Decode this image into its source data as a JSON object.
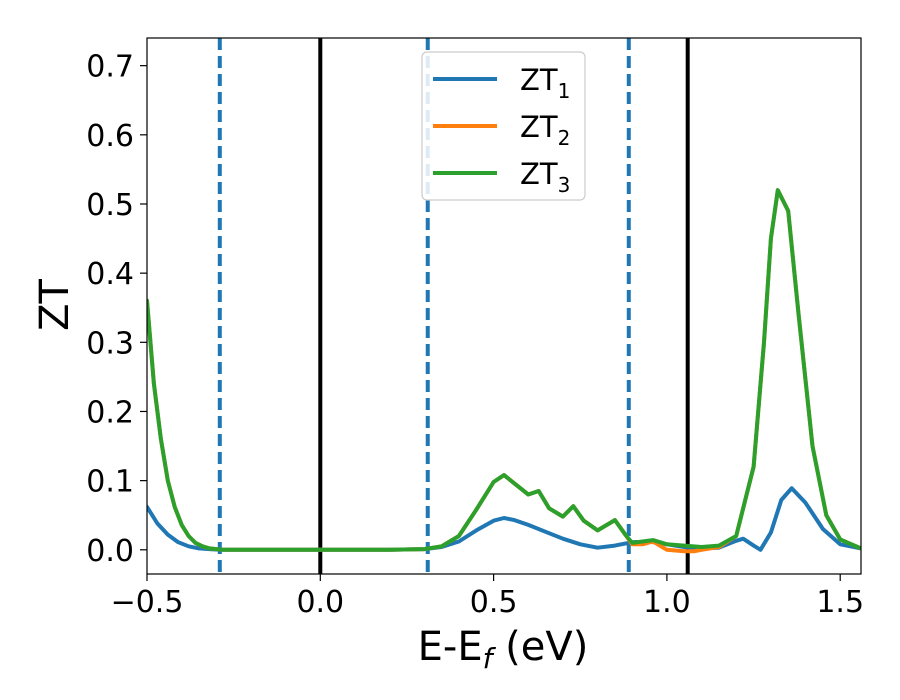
{
  "chart_data": {
    "type": "line",
    "xlabel_main": "E-E",
    "xlabel_sub": "f",
    "xlabel_unit": " (eV)",
    "ylabel": "ZT",
    "xlim": [
      -0.5,
      1.56
    ],
    "ylim": [
      -0.035,
      0.74
    ],
    "x_ticks": [
      -0.5,
      0.0,
      0.5,
      1.0,
      1.5
    ],
    "x_tick_labels": [
      "−0.5",
      "0.0",
      "0.5",
      "1.0",
      "1.5"
    ],
    "y_ticks": [
      0.0,
      0.1,
      0.2,
      0.3,
      0.4,
      0.5,
      0.6,
      0.7
    ],
    "y_tick_labels": [
      "0.0",
      "0.1",
      "0.2",
      "0.3",
      "0.4",
      "0.5",
      "0.6",
      "0.7"
    ],
    "grid": false,
    "legend_position": "top-center",
    "series": [
      {
        "name_main": "ZT",
        "name_sub": "1",
        "color": "#1f77b4",
        "x": [
          -0.5,
          -0.47,
          -0.44,
          -0.41,
          -0.38,
          -0.35,
          -0.32,
          -0.29,
          -0.2,
          0.0,
          0.2,
          0.3,
          0.35,
          0.4,
          0.45,
          0.5,
          0.53,
          0.56,
          0.6,
          0.65,
          0.7,
          0.75,
          0.8,
          0.85,
          0.9,
          0.95,
          1.0,
          1.05,
          1.1,
          1.15,
          1.2,
          1.22,
          1.25,
          1.27,
          1.3,
          1.33,
          1.36,
          1.4,
          1.45,
          1.5,
          1.56
        ],
        "y": [
          0.062,
          0.038,
          0.022,
          0.011,
          0.005,
          0.002,
          0.001,
          0.0,
          0.0,
          0.0,
          0.0,
          0.001,
          0.004,
          0.012,
          0.028,
          0.042,
          0.046,
          0.043,
          0.036,
          0.026,
          0.016,
          0.008,
          0.003,
          0.006,
          0.011,
          0.012,
          0.008,
          0.004,
          0.002,
          0.003,
          0.013,
          0.016,
          0.006,
          0.0,
          0.025,
          0.072,
          0.089,
          0.068,
          0.03,
          0.008,
          0.002
        ]
      },
      {
        "name_main": "ZT",
        "name_sub": "2",
        "color": "#ff7f0e",
        "x": [
          -0.5,
          -0.48,
          -0.46,
          -0.44,
          -0.42,
          -0.4,
          -0.38,
          -0.36,
          -0.34,
          -0.32,
          -0.3,
          -0.28,
          -0.2,
          0.0,
          0.2,
          0.3,
          0.35,
          0.4,
          0.45,
          0.5,
          0.53,
          0.56,
          0.6,
          0.63,
          0.66,
          0.7,
          0.73,
          0.76,
          0.8,
          0.85,
          0.88,
          0.9,
          0.93,
          0.96,
          1.0,
          1.05,
          1.08,
          1.1,
          1.15,
          1.2,
          1.25,
          1.28,
          1.3,
          1.32,
          1.35,
          1.38,
          1.42,
          1.46,
          1.5,
          1.56
        ],
        "y": [
          0.36,
          0.24,
          0.16,
          0.1,
          0.062,
          0.036,
          0.02,
          0.01,
          0.005,
          0.002,
          0.001,
          0.0,
          0.0,
          0.0,
          0.0,
          0.001,
          0.005,
          0.02,
          0.058,
          0.098,
          0.108,
          0.096,
          0.08,
          0.085,
          0.06,
          0.048,
          0.063,
          0.042,
          0.028,
          0.043,
          0.022,
          0.008,
          0.008,
          0.012,
          0.0,
          -0.002,
          -0.002,
          0.0,
          0.004,
          0.02,
          0.12,
          0.3,
          0.45,
          0.52,
          0.49,
          0.34,
          0.15,
          0.05,
          0.015,
          0.002
        ]
      },
      {
        "name_main": "ZT",
        "name_sub": "3",
        "color": "#2ca02c",
        "x": [
          -0.5,
          -0.48,
          -0.46,
          -0.44,
          -0.42,
          -0.4,
          -0.38,
          -0.36,
          -0.34,
          -0.32,
          -0.3,
          -0.28,
          -0.2,
          0.0,
          0.2,
          0.3,
          0.35,
          0.4,
          0.45,
          0.5,
          0.53,
          0.56,
          0.6,
          0.63,
          0.66,
          0.7,
          0.73,
          0.76,
          0.8,
          0.85,
          0.88,
          0.9,
          0.93,
          0.96,
          1.0,
          1.05,
          1.1,
          1.15,
          1.2,
          1.25,
          1.28,
          1.3,
          1.32,
          1.35,
          1.38,
          1.42,
          1.46,
          1.5,
          1.56
        ],
        "y": [
          0.36,
          0.24,
          0.16,
          0.1,
          0.062,
          0.036,
          0.02,
          0.01,
          0.005,
          0.002,
          0.001,
          0.0,
          0.0,
          0.0,
          0.0,
          0.001,
          0.005,
          0.02,
          0.058,
          0.098,
          0.108,
          0.096,
          0.08,
          0.085,
          0.06,
          0.048,
          0.063,
          0.042,
          0.028,
          0.043,
          0.022,
          0.01,
          0.012,
          0.014,
          0.008,
          0.006,
          0.004,
          0.006,
          0.02,
          0.12,
          0.3,
          0.45,
          0.52,
          0.49,
          0.34,
          0.15,
          0.05,
          0.015,
          0.002
        ]
      }
    ],
    "vlines": [
      {
        "x": -0.29,
        "style": "dashed",
        "color": "#1f77b4"
      },
      {
        "x": 0.0,
        "style": "solid",
        "color": "#000000"
      },
      {
        "x": 0.31,
        "style": "dashed",
        "color": "#1f77b4"
      },
      {
        "x": 0.89,
        "style": "dashed",
        "color": "#1f77b4"
      },
      {
        "x": 1.06,
        "style": "solid",
        "color": "#000000"
      }
    ]
  }
}
